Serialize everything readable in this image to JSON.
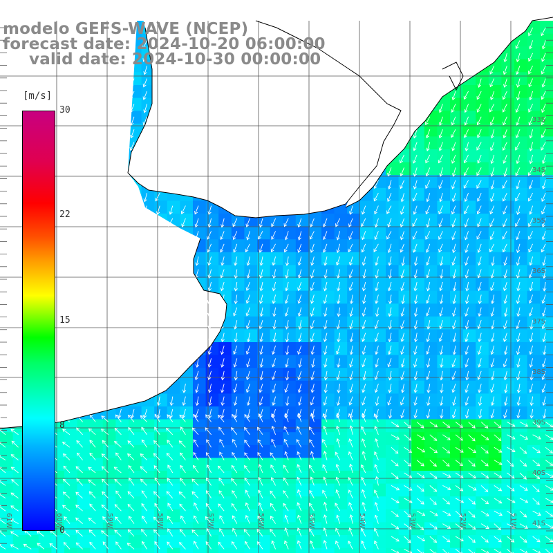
{
  "title": {
    "line1": "modelo GEFS-WAVE (NCEP)",
    "line2": "forecast date: 2024-10-20 06:00:00",
    "line3": "valid date: 2024-10-30 00:00:00"
  },
  "colorbar": {
    "unit": "[m/s]",
    "ticks": [
      "30",
      "22",
      "15",
      "8",
      "0"
    ],
    "tick_values": [
      30,
      22,
      15,
      8,
      0
    ],
    "range": [
      0,
      30
    ],
    "colors": [
      "#0000ff",
      "#00b4ff",
      "#00ffff",
      "#00ff64",
      "#00ff00",
      "#ffff00",
      "#ff5000",
      "#ff0000",
      "#c80080"
    ]
  },
  "lat_labels": [
    "33S",
    "34S",
    "35S",
    "36S",
    "37S",
    "38S",
    "39S",
    "40S",
    "41S"
  ],
  "lon_labels": [
    "61W",
    "60W",
    "59W",
    "58W",
    "57W",
    "56W",
    "55W",
    "54W",
    "53W",
    "52W",
    "51W"
  ],
  "colors": {
    "title": "#8a8a8a",
    "land": "#ffffff",
    "coast": "#000000",
    "grid": "#555555",
    "arrows": "#ffffff"
  }
}
